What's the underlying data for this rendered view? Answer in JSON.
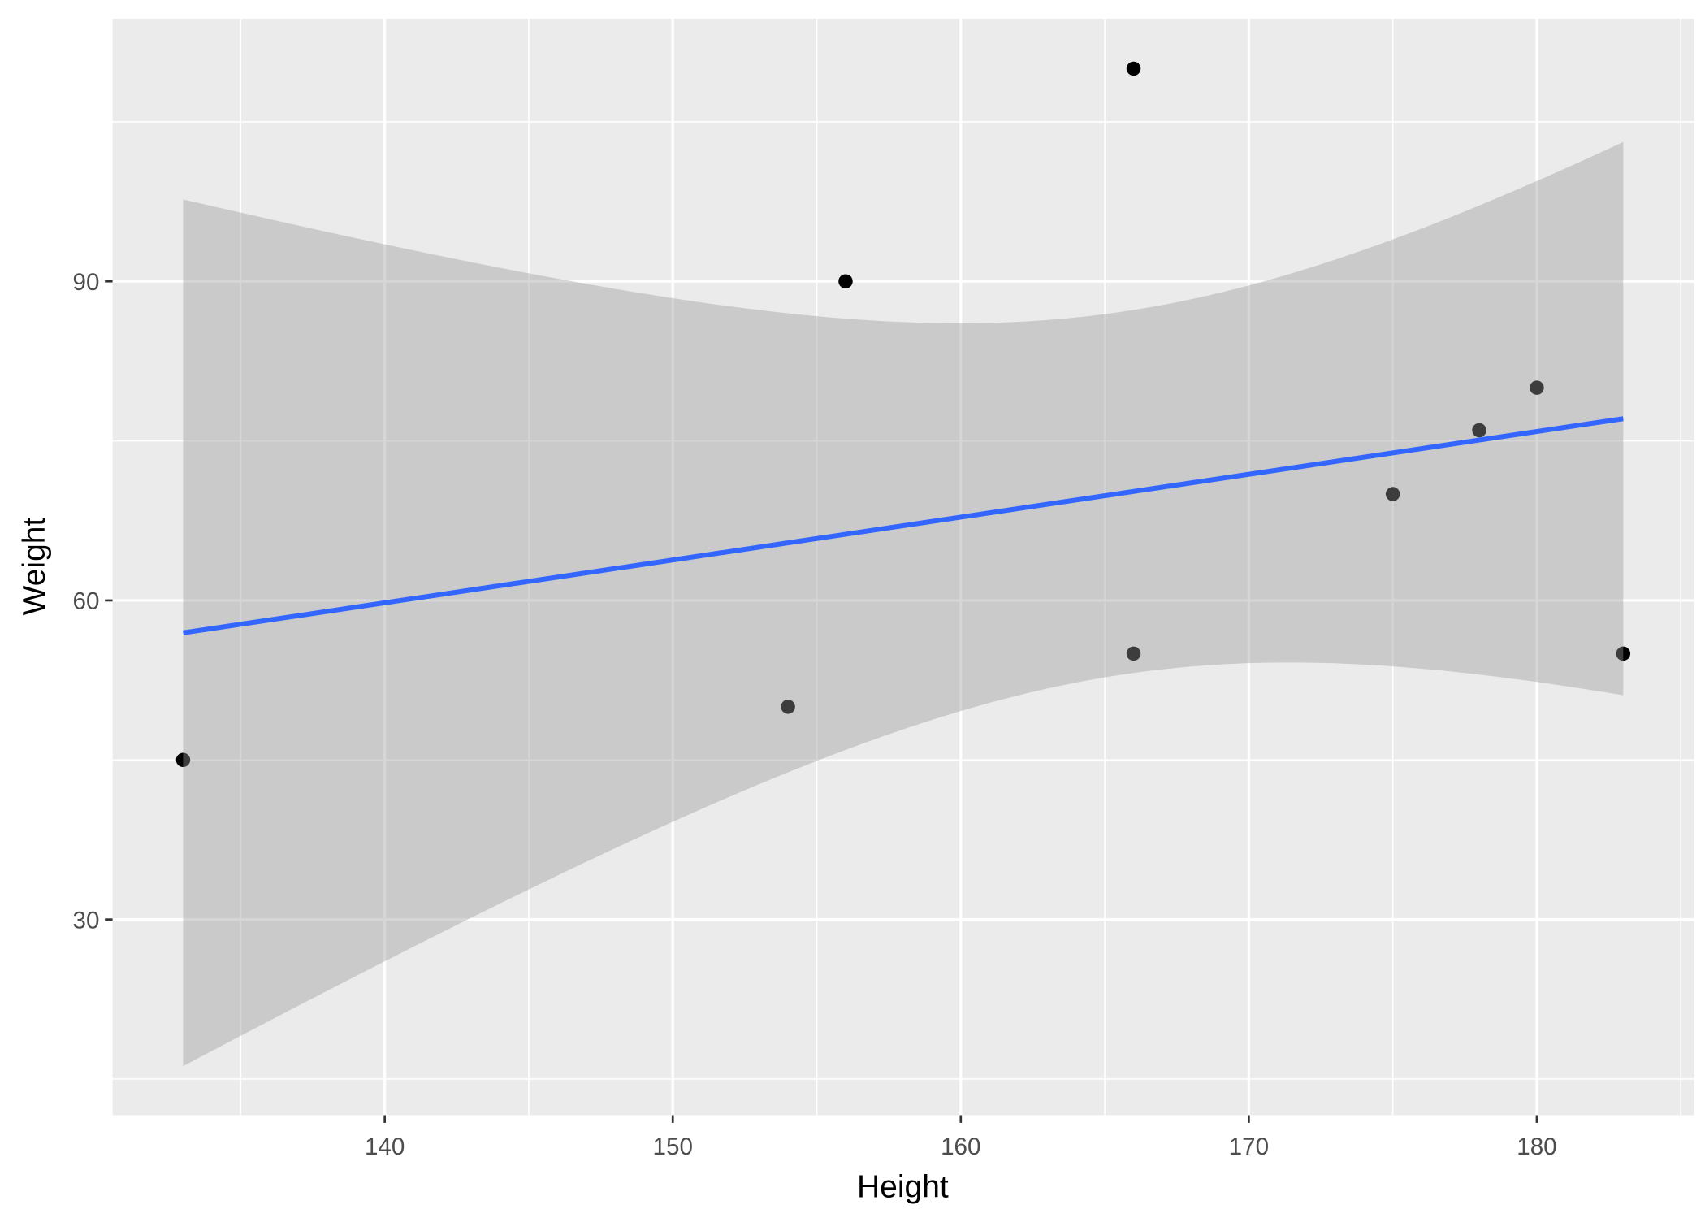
{
  "chart_data": {
    "type": "scatter",
    "title": "",
    "xlabel": "Height",
    "ylabel": "Weight",
    "xlim": [
      130.55,
      185.46
    ],
    "ylim": [
      11.6,
      114.7
    ],
    "x_ticks": [
      140,
      150,
      160,
      170,
      180
    ],
    "y_ticks": [
      30,
      60,
      90
    ],
    "x_tick_labels": [
      "140",
      "150",
      "160",
      "170",
      "180"
    ],
    "y_tick_labels": [
      "30",
      "60",
      "90"
    ],
    "grid": true,
    "legend": "none",
    "series": [
      {
        "x": [
          133,
          154,
          156,
          166,
          166,
          175,
          178,
          180,
          183
        ],
        "y": [
          45,
          50,
          90,
          110,
          55,
          70,
          76,
          80,
          55
        ]
      }
    ],
    "smooth": {
      "method": "lm",
      "confidence": 0.95,
      "show_band": true
    },
    "colors": {
      "panel": "#EBEBEB",
      "grid": "#FFFFFF",
      "points": "#000000",
      "line": "#3366FF",
      "band": "#999999"
    }
  }
}
